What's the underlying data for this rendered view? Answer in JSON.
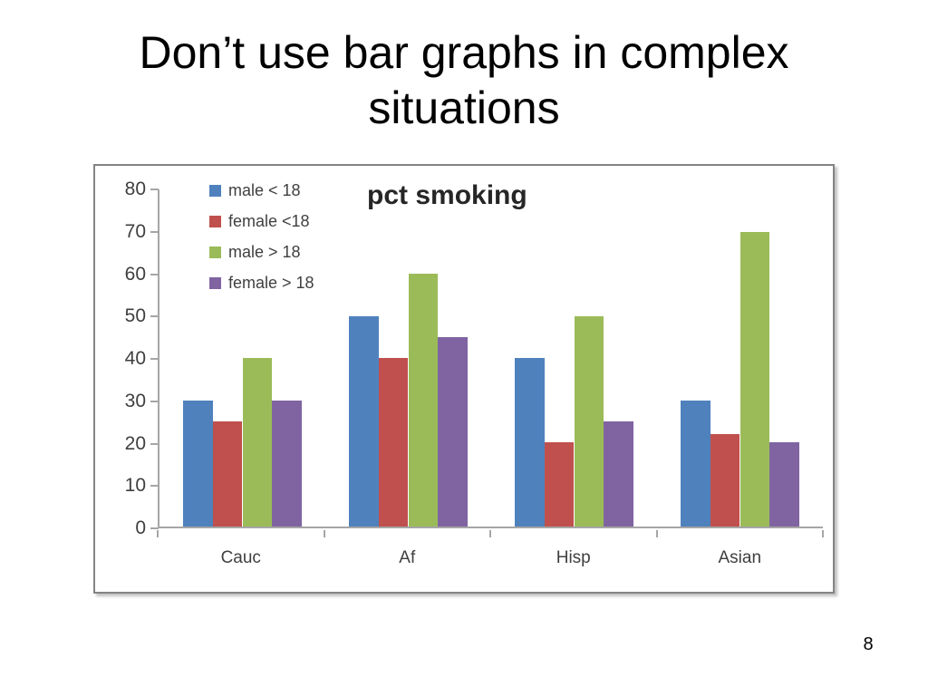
{
  "slide": {
    "title": "Don’t use bar graphs in complex situations",
    "page_number": "8"
  },
  "chart_data": {
    "type": "bar",
    "title": "pct smoking",
    "categories": [
      "Cauc",
      "Af",
      "Hisp",
      "Asian"
    ],
    "series": [
      {
        "name": "male < 18",
        "color": "#4F81BD",
        "values": [
          30,
          50,
          40,
          30
        ]
      },
      {
        "name": "female <18",
        "color": "#C0504D",
        "values": [
          25,
          40,
          20,
          22
        ]
      },
      {
        "name": "male > 18",
        "color": "#9BBB59",
        "values": [
          40,
          60,
          50,
          70
        ]
      },
      {
        "name": "female > 18",
        "color": "#8064A2",
        "values": [
          30,
          45,
          25,
          20
        ]
      }
    ],
    "ylim": [
      0,
      80
    ],
    "yticks": [
      0,
      10,
      20,
      30,
      40,
      50,
      60,
      70,
      80
    ],
    "xlabel": "",
    "ylabel": "",
    "grid": false,
    "legend_position": "top-left",
    "axis_color": "#a6a6a6"
  }
}
